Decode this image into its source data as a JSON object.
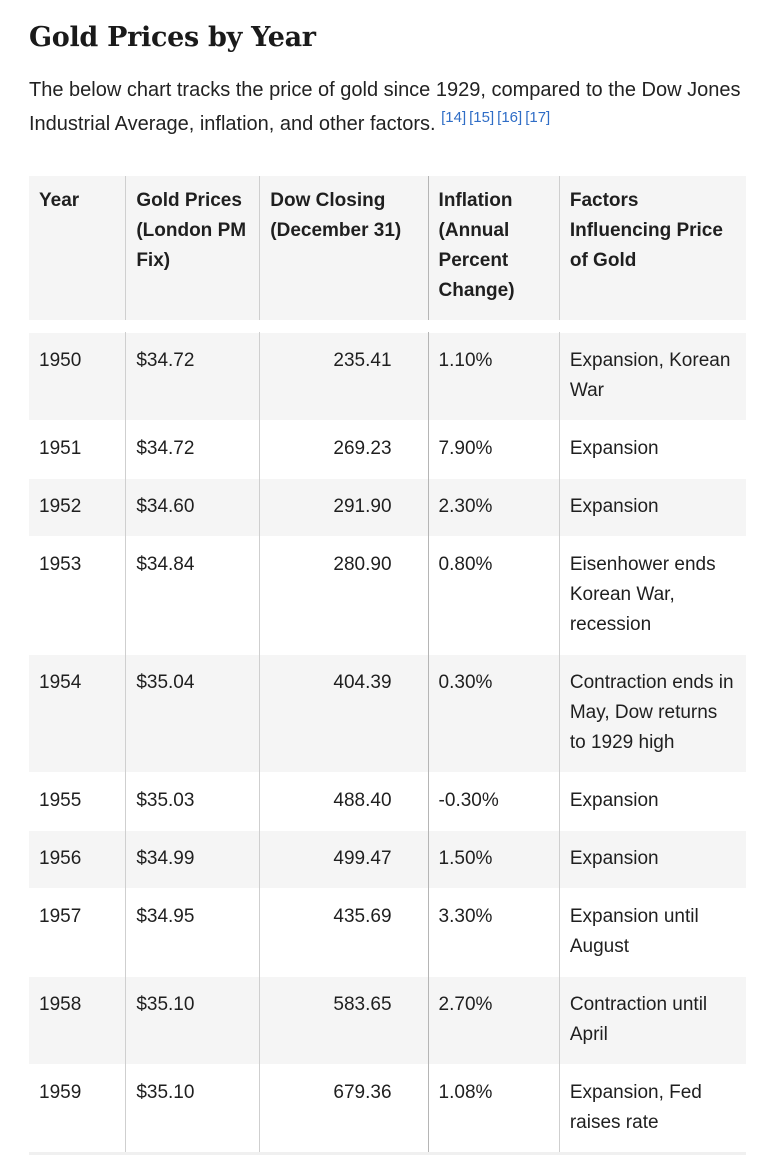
{
  "heading": "Gold Prices by Year",
  "intro": {
    "text": "The below chart tracks the price of gold since 1929, compared to the Dow Jones Industrial Average, inflation, and other factors.",
    "refs": [
      "[14]",
      "[15]",
      "[16]",
      "[17]"
    ]
  },
  "table": {
    "headers": [
      "Year",
      "Gold Prices (London PM Fix)",
      "Dow Closing (December 31)",
      "Inflation (Annual Percent Change)",
      "Factors Influencing Price of Gold"
    ],
    "rows": [
      [
        "1950",
        "$34.72",
        "235.41",
        "1.10%",
        "Expansion, Korean War"
      ],
      [
        "1951",
        "$34.72",
        "269.23",
        "7.90%",
        "Expansion"
      ],
      [
        "1952",
        "$34.60",
        "291.90",
        "2.30%",
        "Expansion"
      ],
      [
        "1953",
        "$34.84",
        "280.90",
        "0.80%",
        "Eisenhower ends Korean War, recession"
      ],
      [
        "1954",
        "$35.04",
        "404.39",
        "0.30%",
        "Contraction ends in May, Dow returns to 1929 high"
      ],
      [
        "1955",
        "$35.03",
        "488.40",
        "-0.30%",
        "Expansion"
      ],
      [
        "1956",
        "$34.99",
        "499.47",
        "1.50%",
        "Expansion"
      ],
      [
        "1957",
        "$34.95",
        "435.69",
        "3.30%",
        "Expansion until August"
      ],
      [
        "1958",
        "$35.10",
        "583.65",
        "2.70%",
        "Contraction until April"
      ],
      [
        "1959",
        "$35.10",
        "679.36",
        "1.08%",
        "Expansion, Fed raises rate"
      ]
    ]
  },
  "colors": {
    "shade": "#f5f5f5",
    "link": "#2f6dc6"
  }
}
